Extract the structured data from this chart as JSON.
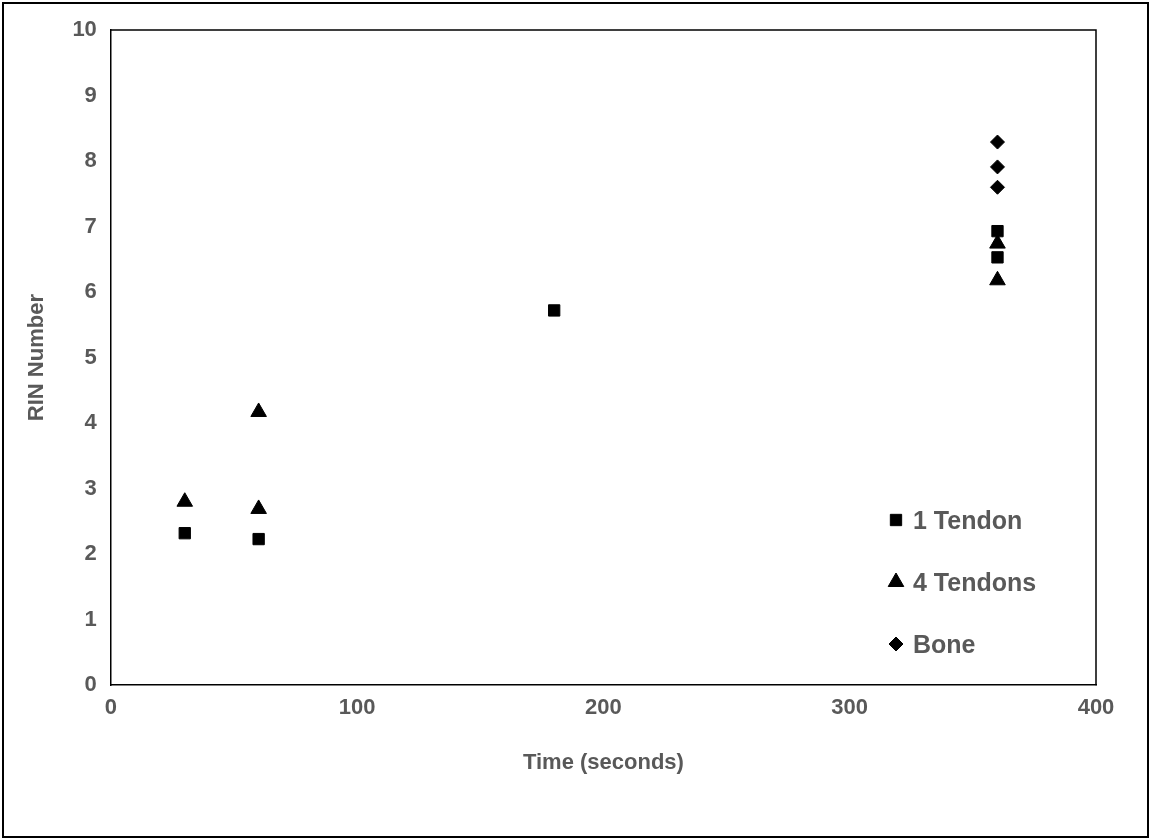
{
  "chart_data": {
    "type": "scatter",
    "xlabel": "Time (seconds)",
    "ylabel": "RIN Number",
    "xlim": [
      0,
      400
    ],
    "xticks": [
      0,
      100,
      200,
      300,
      400
    ],
    "ylim": [
      0,
      10
    ],
    "yticks": [
      0,
      1,
      2,
      3,
      4,
      5,
      6,
      7,
      8,
      9,
      10
    ],
    "grid": false,
    "legend": "bottom right",
    "series": [
      {
        "name": "1 Tendon",
        "color": "#000000",
        "marker": "square",
        "x": [
          30,
          60,
          180,
          360,
          360
        ],
        "values": [
          2.32,
          2.23,
          5.72,
          6.93,
          6.53
        ]
      },
      {
        "name": "4 Tendons",
        "color": "#000000",
        "marker": "triangle",
        "x": [
          30,
          60,
          60,
          360,
          360
        ],
        "values": [
          2.8,
          4.17,
          2.69,
          6.74,
          6.18
        ]
      },
      {
        "name": "Bone",
        "color": "#000000",
        "marker": "diamond",
        "x": [
          360,
          360,
          360
        ],
        "values": [
          8.29,
          7.91,
          7.6
        ]
      }
    ]
  }
}
